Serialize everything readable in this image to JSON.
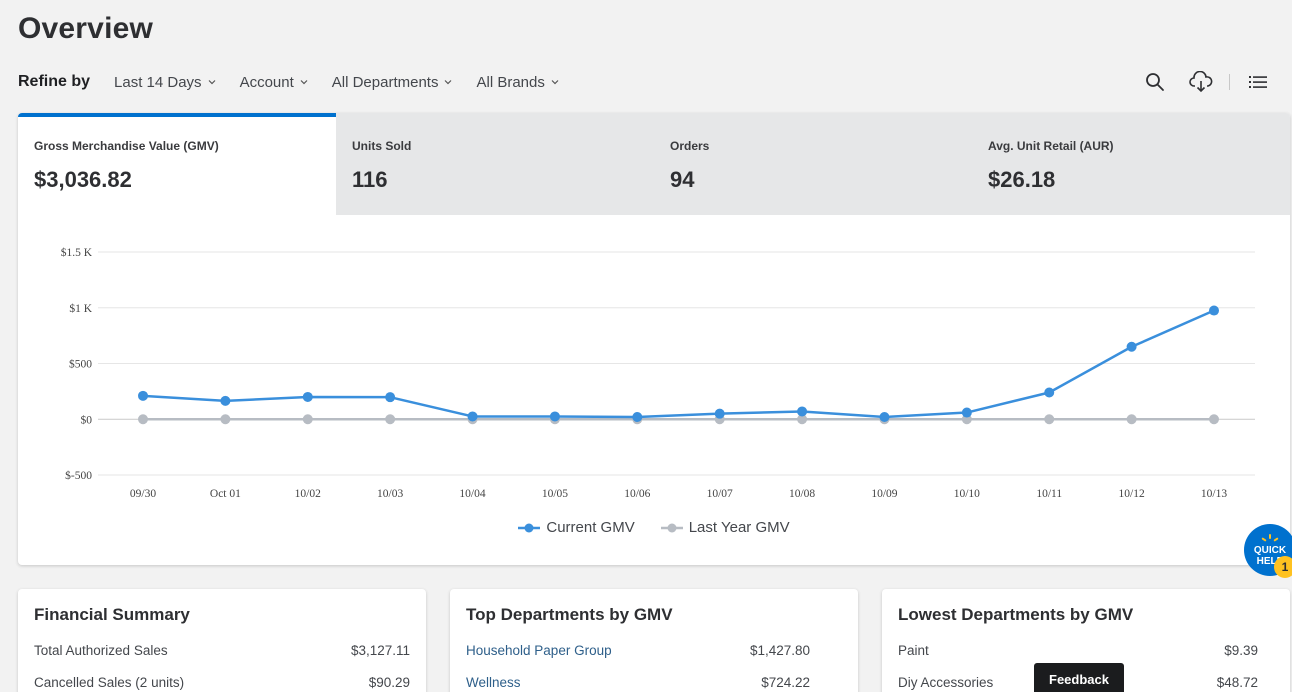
{
  "page": {
    "title": "Overview"
  },
  "refine": {
    "label": "Refine by",
    "filters": [
      "Last 14 Days",
      "Account",
      "All Departments",
      "All Brands"
    ]
  },
  "toolbar": {
    "icons": [
      "search-icon",
      "cloud-download-icon",
      "list-icon"
    ]
  },
  "kpis": [
    {
      "label": "Gross Merchandise Value (GMV)",
      "value": "$3,036.82",
      "active": true
    },
    {
      "label": "Units Sold",
      "value": "116",
      "active": false
    },
    {
      "label": "Orders",
      "value": "94",
      "active": false
    },
    {
      "label": "Avg. Unit Retail (AUR)",
      "value": "$26.18",
      "active": false
    }
  ],
  "chart_data": {
    "type": "line",
    "x": [
      "09/30",
      "Oct 01",
      "10/02",
      "10/03",
      "10/04",
      "10/05",
      "10/06",
      "10/07",
      "10/08",
      "10/09",
      "10/10",
      "10/11",
      "10/12",
      "10/13"
    ],
    "y_ticks": [
      {
        "value": 1500,
        "label": "$1.5 K"
      },
      {
        "value": 1000,
        "label": "$1 K"
      },
      {
        "value": 500,
        "label": "$500"
      },
      {
        "value": 0,
        "label": "$0"
      },
      {
        "value": -500,
        "label": "$-500"
      }
    ],
    "ylim": [
      -500,
      1500
    ],
    "grid": true,
    "legend_position": "bottom-center",
    "series": [
      {
        "name": "Current GMV",
        "color": "#3a8fdc",
        "values": [
          210,
          165,
          200,
          198,
          25,
          25,
          20,
          50,
          70,
          20,
          60,
          240,
          650,
          975
        ]
      },
      {
        "name": "Last Year GMV",
        "color": "#b7bcc3",
        "values": [
          0,
          0,
          0,
          0,
          0,
          0,
          0,
          0,
          0,
          0,
          0,
          0,
          0,
          0
        ]
      }
    ]
  },
  "quick_help": {
    "line1": "QUICK",
    "line2": "HELP",
    "badge": "1"
  },
  "financial_summary": {
    "title": "Financial Summary",
    "rows": [
      {
        "label": "Total Authorized Sales",
        "value": "$3,127.11"
      },
      {
        "label": "Cancelled Sales (2 units)",
        "value": "$90.29"
      }
    ]
  },
  "top_departments": {
    "title": "Top Departments by GMV",
    "rows": [
      {
        "label": "Household Paper Group",
        "value": "$1,427.80"
      },
      {
        "label": "Wellness",
        "value": "$724.22"
      }
    ]
  },
  "lowest_departments": {
    "title": "Lowest Departments by GMV",
    "rows": [
      {
        "label": "Paint",
        "value": "$9.39"
      },
      {
        "label": "Diy Accessories",
        "value": "$48.72"
      }
    ]
  },
  "feedback": {
    "label": "Feedback"
  }
}
